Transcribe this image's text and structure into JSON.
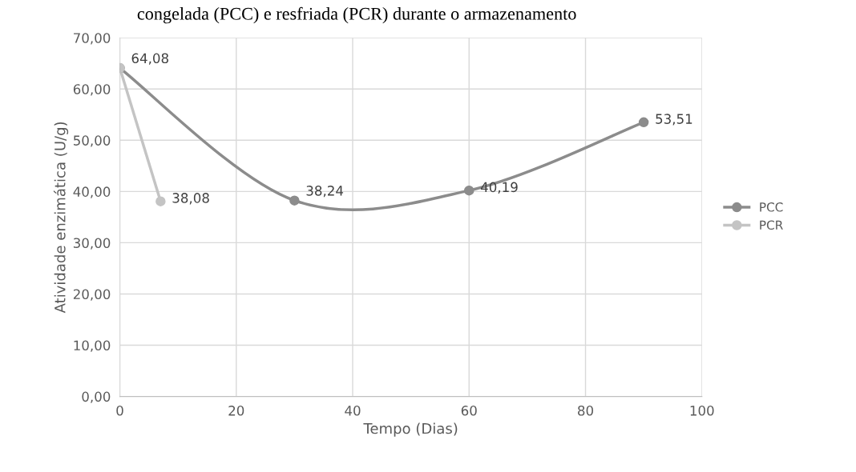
{
  "chart_data": {
    "type": "line",
    "title": "congelada (PCC) e resfriada (PCR) durante o armazenamento",
    "xlabel": "Tempo (Dias)",
    "ylabel": "Atividade enzimática (U/g)",
    "series": [
      {
        "name": "PCC",
        "color": "#8c8c8c",
        "x": [
          0,
          30,
          60,
          90
        ],
        "values": [
          64.08,
          38.24,
          40.19,
          53.51
        ],
        "value_labels": [
          "64,08",
          "38,24",
          "40,19",
          "53,51"
        ]
      },
      {
        "name": "PCR",
        "color": "#c4c4c4",
        "x": [
          0,
          7
        ],
        "values": [
          64.08,
          38.08
        ],
        "value_labels": [
          null,
          "38,08"
        ]
      }
    ],
    "xlim": [
      0,
      100
    ],
    "xticks": [
      0,
      20,
      40,
      60,
      80,
      100
    ],
    "ylim": [
      0,
      70
    ],
    "yticks": [
      {
        "value": 0,
        "label": "0,00"
      },
      {
        "value": 10,
        "label": "10,00"
      },
      {
        "value": 20,
        "label": "20,00"
      },
      {
        "value": 30,
        "label": "30,00"
      },
      {
        "value": 40,
        "label": "40,00"
      },
      {
        "value": 50,
        "label": "50,00"
      },
      {
        "value": 60,
        "label": "60,00"
      },
      {
        "value": 70,
        "label": "70,00"
      }
    ],
    "grid": true,
    "legend": "right",
    "marker": "circle",
    "line_style": "solid"
  }
}
